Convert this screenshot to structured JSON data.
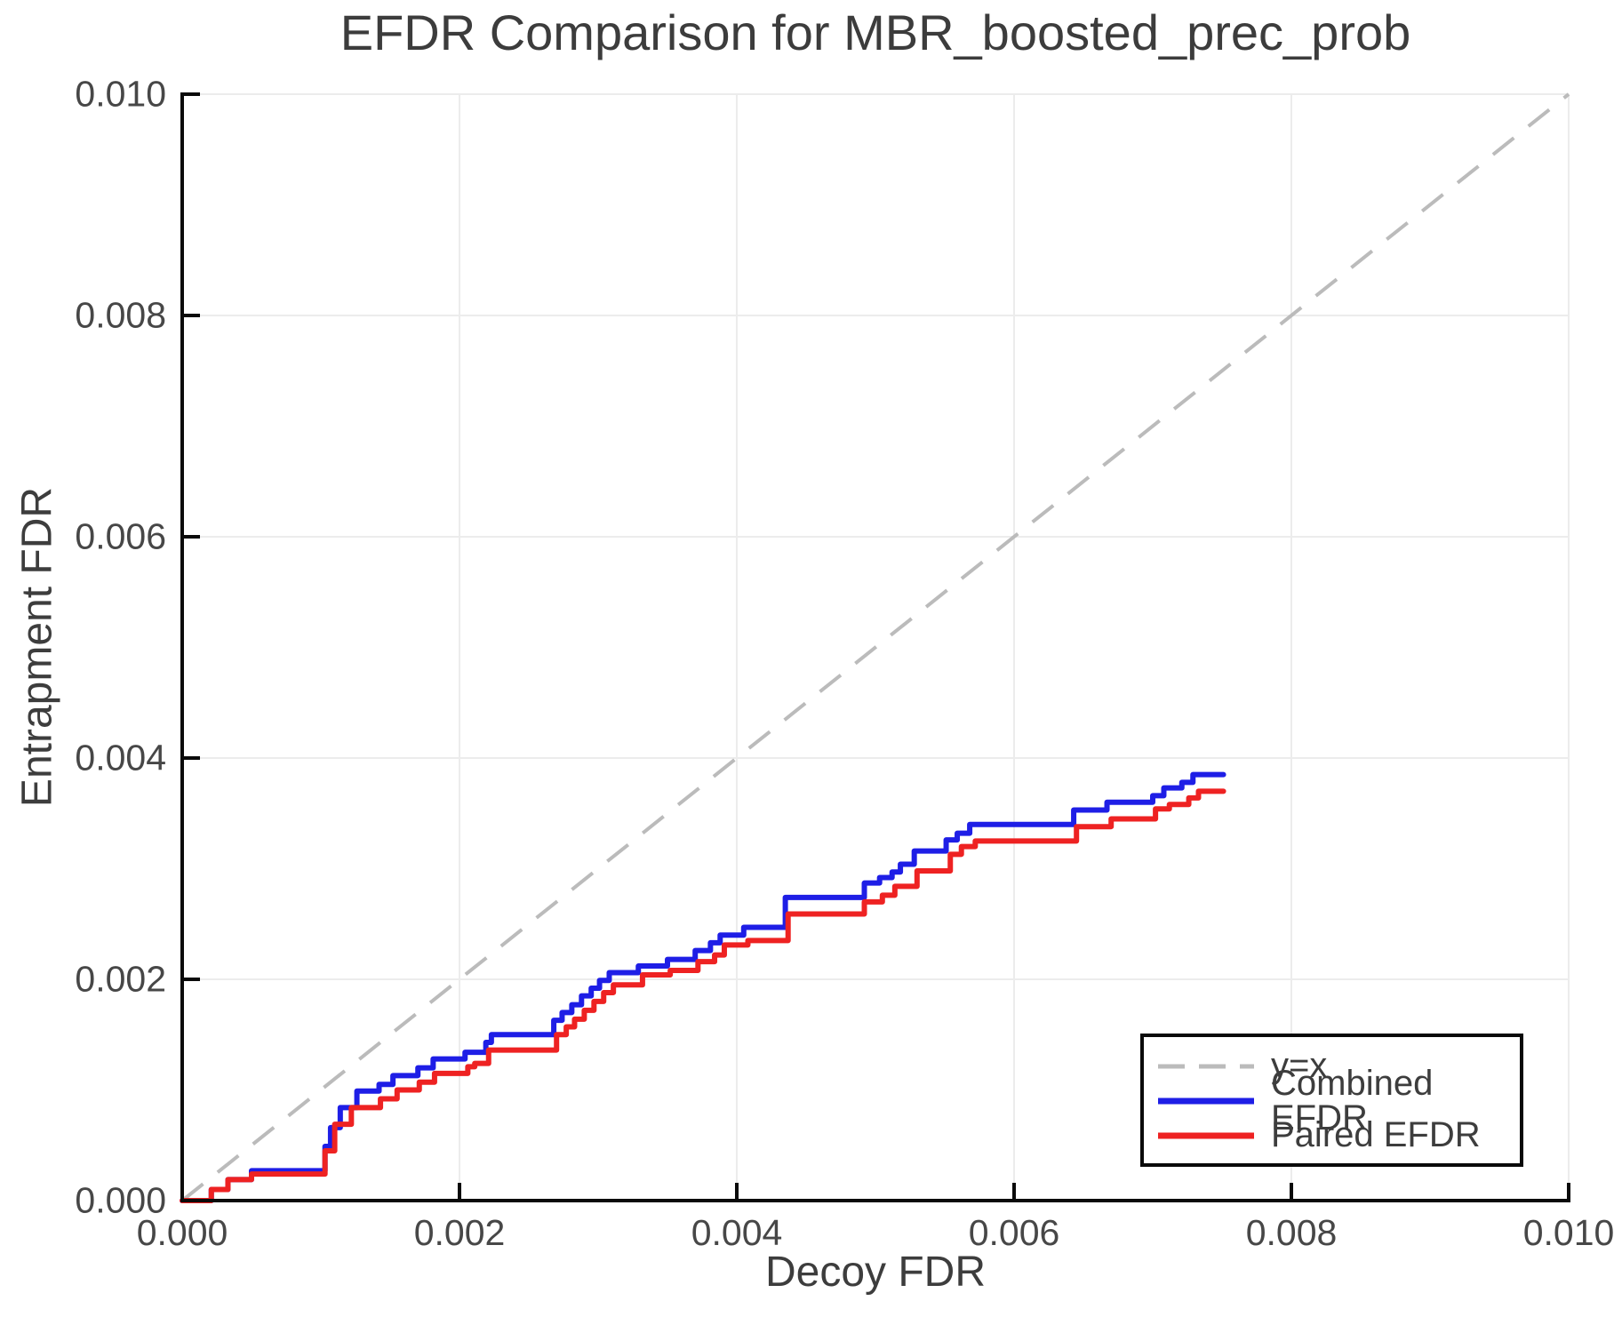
{
  "chart_data": {
    "type": "line",
    "title": "EFDR Comparison for MBR_boosted_prec_prob",
    "xlabel": "Decoy FDR",
    "ylabel": "Entrapment FDR",
    "xlim": [
      0.0,
      0.01
    ],
    "ylim": [
      0.0,
      0.01
    ],
    "grid": true,
    "grid_color": "#ececec",
    "axis_color": "#0a0a0a",
    "legend_position": "lower right",
    "x_ticks": {
      "values": [
        0.0,
        0.002,
        0.004,
        0.006,
        0.008,
        0.01
      ],
      "labels": [
        "0.000",
        "0.002",
        "0.004",
        "0.006",
        "0.008",
        "0.010"
      ]
    },
    "y_ticks": {
      "values": [
        0.0,
        0.002,
        0.004,
        0.006,
        0.008,
        0.01
      ],
      "labels": [
        "0.000",
        "0.002",
        "0.004",
        "0.006",
        "0.008",
        "0.010"
      ]
    },
    "reference_line": {
      "label": "y=x",
      "style": "dashed",
      "color": "#bbbbbb",
      "from": [
        0.0,
        0.0
      ],
      "to": [
        0.01,
        0.01
      ]
    },
    "series": [
      {
        "name": "Combined EFDR",
        "color": "#1e1ee6",
        "style": "step-after",
        "points": [
          [
            0.0,
            0.0
          ],
          [
            0.00021,
            0.0001
          ],
          [
            0.00033,
            0.00019
          ],
          [
            0.0005,
            0.00027
          ],
          [
            0.00103,
            0.00049
          ],
          [
            0.00107,
            0.00066
          ],
          [
            0.00114,
            0.00084
          ],
          [
            0.00126,
            0.00099
          ],
          [
            0.00142,
            0.00105
          ],
          [
            0.00152,
            0.00113
          ],
          [
            0.0017,
            0.0012
          ],
          [
            0.00181,
            0.00128
          ],
          [
            0.00204,
            0.00134
          ],
          [
            0.00219,
            0.00143
          ],
          [
            0.00223,
            0.0015
          ],
          [
            0.00268,
            0.00163
          ],
          [
            0.00274,
            0.0017
          ],
          [
            0.00281,
            0.00177
          ],
          [
            0.00288,
            0.00185
          ],
          [
            0.00295,
            0.00192
          ],
          [
            0.00301,
            0.00199
          ],
          [
            0.00308,
            0.00206
          ],
          [
            0.00329,
            0.00212
          ],
          [
            0.0035,
            0.00218
          ],
          [
            0.0037,
            0.00226
          ],
          [
            0.00381,
            0.00233
          ],
          [
            0.00388,
            0.0024
          ],
          [
            0.00405,
            0.00247
          ],
          [
            0.00435,
            0.00274
          ],
          [
            0.00492,
            0.00287
          ],
          [
            0.00503,
            0.00292
          ],
          [
            0.00512,
            0.00297
          ],
          [
            0.00518,
            0.00304
          ],
          [
            0.00528,
            0.00316
          ],
          [
            0.00551,
            0.00326
          ],
          [
            0.00559,
            0.00332
          ],
          [
            0.00568,
            0.0034
          ],
          [
            0.00643,
            0.00353
          ],
          [
            0.00667,
            0.0036
          ],
          [
            0.007,
            0.00366
          ],
          [
            0.00708,
            0.00373
          ],
          [
            0.00721,
            0.00378
          ],
          [
            0.00729,
            0.00385
          ],
          [
            0.00751,
            0.00385
          ]
        ]
      },
      {
        "name": "Paired EFDR",
        "color": "#ee2222",
        "style": "step-after",
        "points": [
          [
            0.0,
            0.0
          ],
          [
            0.00021,
            0.0001
          ],
          [
            0.00033,
            0.00019
          ],
          [
            0.0005,
            0.00024
          ],
          [
            0.00103,
            0.00045
          ],
          [
            0.0011,
            0.00069
          ],
          [
            0.00122,
            0.00084
          ],
          [
            0.00143,
            0.00092
          ],
          [
            0.00155,
            0.001
          ],
          [
            0.00171,
            0.00107
          ],
          [
            0.00182,
            0.00115
          ],
          [
            0.00206,
            0.00121
          ],
          [
            0.00211,
            0.00124
          ],
          [
            0.00221,
            0.00136
          ],
          [
            0.0027,
            0.0015
          ],
          [
            0.00277,
            0.00157
          ],
          [
            0.00283,
            0.00164
          ],
          [
            0.0029,
            0.00172
          ],
          [
            0.00297,
            0.0018
          ],
          [
            0.00304,
            0.00188
          ],
          [
            0.00311,
            0.00195
          ],
          [
            0.00332,
            0.00204
          ],
          [
            0.00352,
            0.00208
          ],
          [
            0.00372,
            0.00216
          ],
          [
            0.00384,
            0.00222
          ],
          [
            0.00391,
            0.00231
          ],
          [
            0.00408,
            0.00235
          ],
          [
            0.00437,
            0.00259
          ],
          [
            0.00492,
            0.0027
          ],
          [
            0.00505,
            0.00276
          ],
          [
            0.00514,
            0.00284
          ],
          [
            0.0053,
            0.00298
          ],
          [
            0.00554,
            0.00313
          ],
          [
            0.00562,
            0.0032
          ],
          [
            0.00572,
            0.00325
          ],
          [
            0.00645,
            0.00338
          ],
          [
            0.0067,
            0.00345
          ],
          [
            0.00702,
            0.00354
          ],
          [
            0.00712,
            0.00358
          ],
          [
            0.00726,
            0.00364
          ],
          [
            0.00733,
            0.0037
          ],
          [
            0.00751,
            0.0037
          ]
        ]
      }
    ]
  }
}
